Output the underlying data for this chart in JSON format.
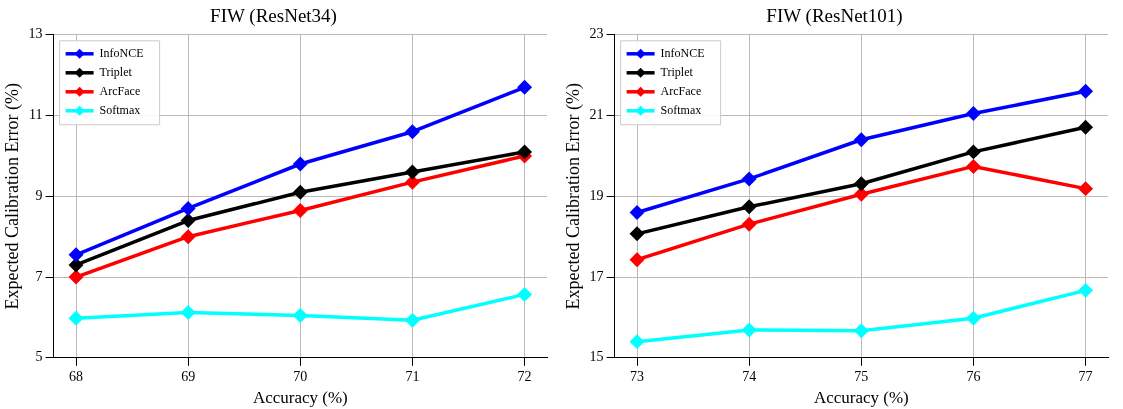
{
  "chart_data": [
    {
      "type": "line",
      "title": "FIW (ResNet34)",
      "xlabel": "Accuracy (%)",
      "ylabel": "Expected Calibration Error (%)",
      "x": [
        68,
        69,
        70,
        71,
        72
      ],
      "xlim": [
        67.8,
        72.2
      ],
      "xticks": [
        68,
        69,
        70,
        71,
        72
      ],
      "ylim": [
        5,
        13
      ],
      "yticks": [
        5,
        7,
        9,
        11,
        13
      ],
      "grid": true,
      "legend": "top left",
      "marker": "diamond",
      "line_style": "solid",
      "series": [
        {
          "name": "InfoNCE",
          "color": "#0000ff",
          "values": [
            7.55,
            8.7,
            9.8,
            10.6,
            11.7
          ]
        },
        {
          "name": "Triplet",
          "color": "#000000",
          "values": [
            7.3,
            8.4,
            9.1,
            9.6,
            10.1
          ]
        },
        {
          "name": "ArcFace",
          "color": "#ff0000",
          "values": [
            7.0,
            8.0,
            8.65,
            9.35,
            10.0
          ]
        },
        {
          "name": "Softmax",
          "color": "#00ffff",
          "values": [
            5.98,
            6.12,
            6.05,
            5.93,
            6.57
          ]
        }
      ]
    },
    {
      "type": "line",
      "title": "FIW (ResNet101)",
      "xlabel": "Accuracy (%)",
      "ylabel": "Expected Calibration Error (%)",
      "x": [
        73,
        74,
        75,
        76,
        77
      ],
      "xlim": [
        72.8,
        77.2
      ],
      "xticks": [
        73,
        74,
        75,
        76,
        77
      ],
      "ylim": [
        15,
        23
      ],
      "yticks": [
        15,
        17,
        19,
        21,
        23
      ],
      "grid": true,
      "legend": "top left",
      "marker": "diamond",
      "line_style": "solid",
      "series": [
        {
          "name": "InfoNCE",
          "color": "#0000ff",
          "values": [
            18.6,
            19.43,
            20.4,
            21.05,
            21.6
          ]
        },
        {
          "name": "Triplet",
          "color": "#000000",
          "values": [
            18.07,
            18.74,
            19.31,
            20.1,
            20.71
          ]
        },
        {
          "name": "ArcFace",
          "color": "#ff0000",
          "values": [
            17.43,
            18.31,
            19.05,
            19.74,
            19.19
          ]
        },
        {
          "name": "Softmax",
          "color": "#00ffff",
          "values": [
            15.4,
            15.69,
            15.67,
            15.98,
            16.67
          ]
        }
      ]
    }
  ]
}
